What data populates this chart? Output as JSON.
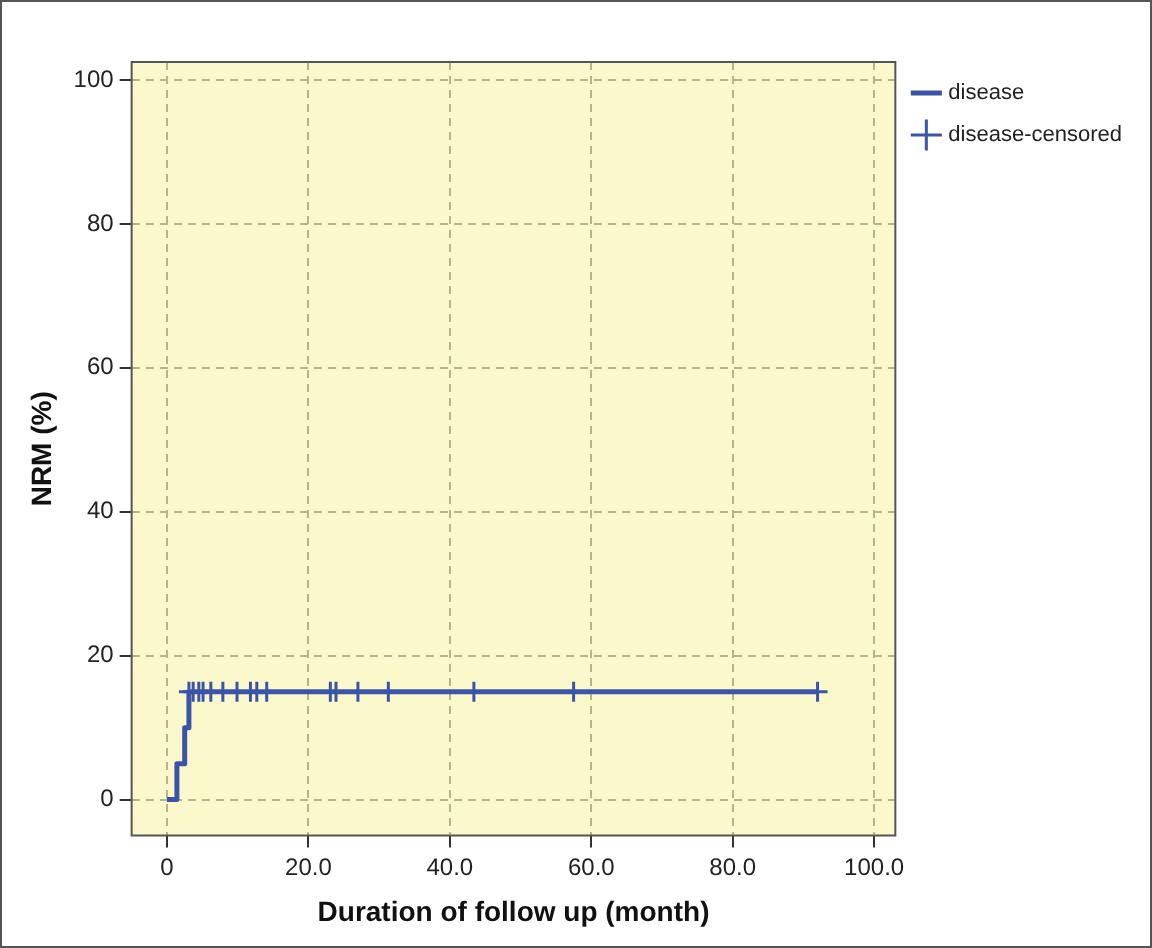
{
  "chart_data": {
    "type": "step",
    "xlabel": "Duration of follow up (month)",
    "ylabel": "NRM (%)",
    "xlim": [
      -5,
      103
    ],
    "ylim": [
      -5,
      102.5
    ],
    "xticks": [
      0,
      {
        "value": 20,
        "label": "20.0"
      },
      {
        "value": 40,
        "label": "40.0"
      },
      {
        "value": 60,
        "label": "60.0"
      },
      {
        "value": 80,
        "label": "80.0"
      },
      {
        "value": 100,
        "label": "100.0"
      }
    ],
    "yticks": [
      0,
      20,
      40,
      60,
      80,
      100
    ],
    "grid": true,
    "legend": "top right",
    "series": [
      {
        "name": "disease",
        "color": "#3a55a8",
        "x": [
          0,
          1.4,
          2.5,
          3.1,
          92
        ],
        "values": [
          0,
          5,
          10,
          15,
          15
        ]
      },
      {
        "name": "disease-censored",
        "type": "scatter",
        "color": "#3a55a8",
        "marker": "cross",
        "x": [
          3.1,
          3.7,
          4.5,
          5.1,
          6.2,
          7.9,
          9.9,
          11.8,
          12.7,
          14.1,
          23.1,
          23.9,
          27.0,
          31.3,
          43.4,
          57.5,
          92
        ],
        "values": [
          15,
          15,
          15,
          15,
          15,
          15,
          15,
          15,
          15,
          15,
          15,
          15,
          15,
          15,
          15,
          15,
          15
        ]
      }
    ]
  }
}
